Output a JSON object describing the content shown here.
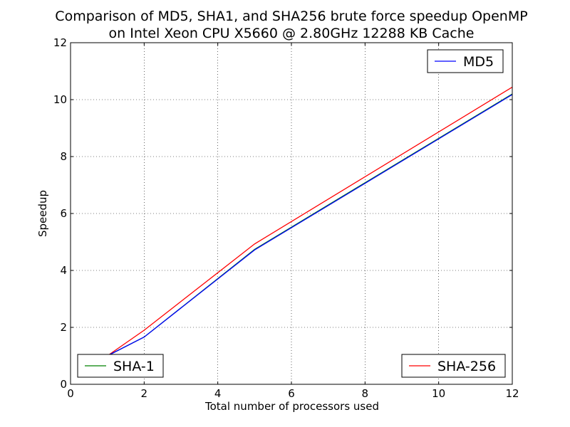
{
  "chart_data": {
    "type": "line",
    "title": "Comparison of MD5, SHA1, and SHA256 brute force speedup OpenMP",
    "subtitle": "on Intel Xeon CPU X5660 @ 2.80GHz 12288 KB Cache",
    "xlabel": "Total number of processors used",
    "ylabel": "Speedup",
    "xlim": [
      0,
      12
    ],
    "ylim": [
      0,
      12
    ],
    "xticks": [
      0,
      2,
      4,
      6,
      8,
      10,
      12
    ],
    "yticks": [
      0,
      2,
      4,
      6,
      8,
      10,
      12
    ],
    "grid": true,
    "x": [
      1,
      2,
      5,
      12
    ],
    "series": [
      {
        "name": "MD5",
        "color": "#0000ff",
        "values": [
          1.0,
          1.66,
          4.72,
          10.18
        ],
        "legend_position": "upper right"
      },
      {
        "name": "SHA-1",
        "color": "#008000",
        "values": [
          1.0,
          1.66,
          4.74,
          10.2
        ],
        "legend_position": "lower left"
      },
      {
        "name": "SHA-256",
        "color": "#ff0000",
        "values": [
          1.0,
          1.9,
          4.93,
          10.44
        ],
        "legend_position": "lower right"
      }
    ]
  }
}
